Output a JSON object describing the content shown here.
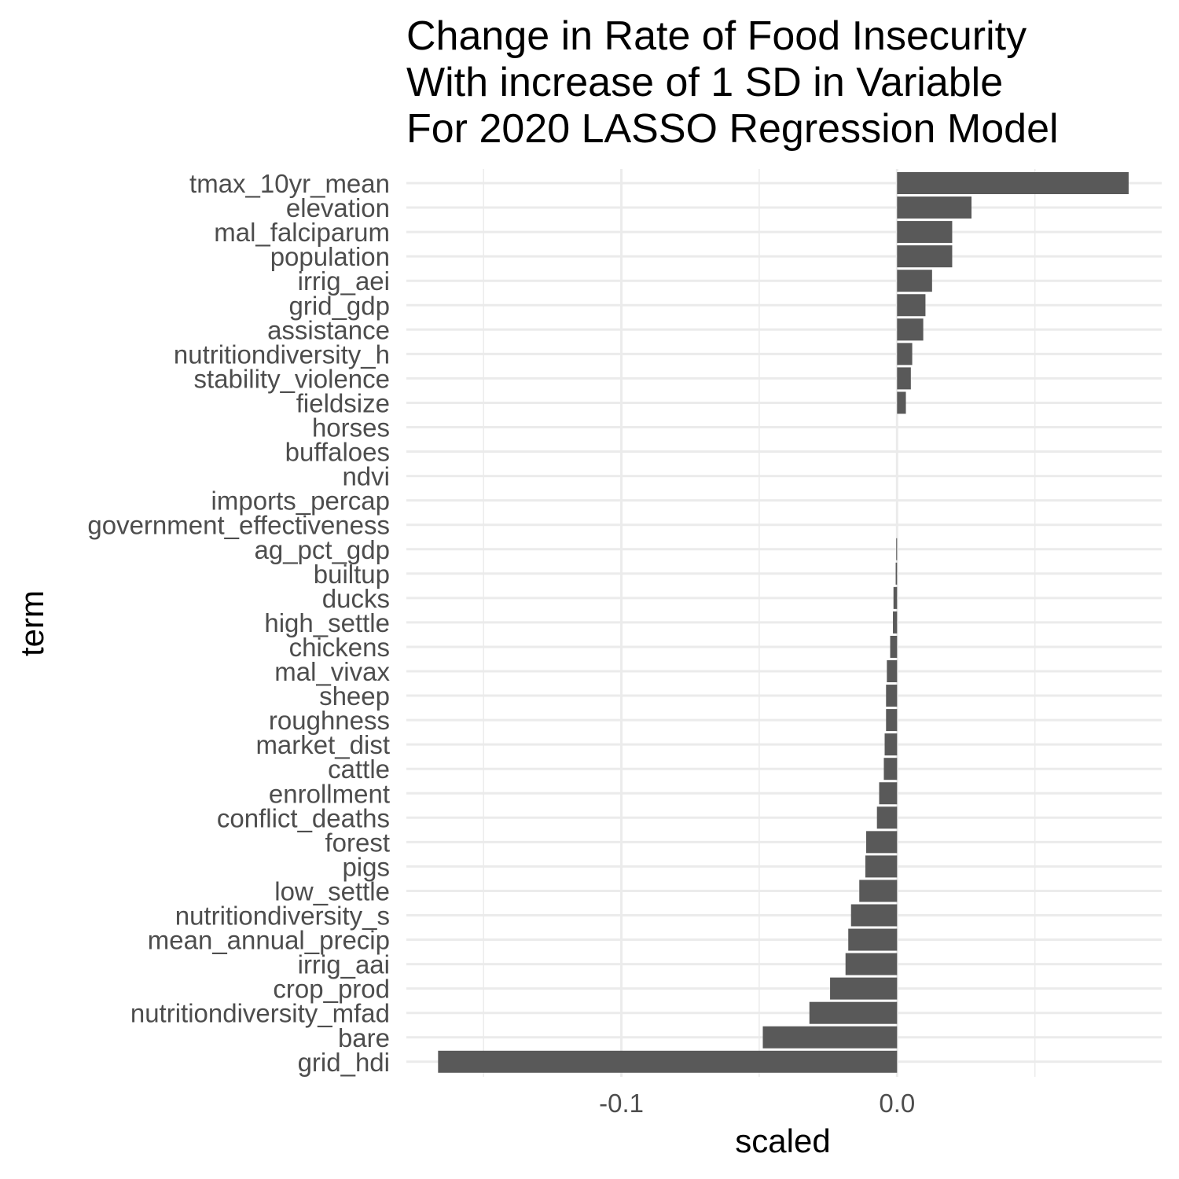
{
  "chart_data": {
    "type": "bar",
    "orientation": "horizontal",
    "title": [
      "Change in Rate of Food Insecurity",
      "With increase of 1 SD in Variable",
      "For 2020 LASSO Regression Model"
    ],
    "xlabel": "scaled",
    "ylabel": "term",
    "xlim": [
      -0.178,
      0.096
    ],
    "xticks": [
      -0.1,
      0.0
    ],
    "xtick_labels": [
      "-0.1",
      "0.0"
    ],
    "xminor": [
      -0.15,
      -0.05,
      0.05
    ],
    "grid": true,
    "legend": "none",
    "bar_color": "#595959",
    "categories": [
      "tmax_10yr_mean",
      "elevation",
      "mal_falciparum",
      "population",
      "irrig_aei",
      "grid_gdp",
      "assistance",
      "nutritiondiversity_h",
      "stability_violence",
      "fieldsize",
      "horses",
      "buffaloes",
      "ndvi",
      "imports_percap",
      "government_effectiveness",
      "ag_pct_gdp",
      "builtup",
      "ducks",
      "high_settle",
      "chickens",
      "mal_vivax",
      "sheep",
      "roughness",
      "market_dist",
      "cattle",
      "enrollment",
      "conflict_deaths",
      "forest",
      "pigs",
      "low_settle",
      "nutritiondiversity_s",
      "mean_annual_precip",
      "irrig_aai",
      "crop_prod",
      "nutritiondiversity_mfad",
      "bare",
      "grid_hdi"
    ],
    "values": [
      0.084,
      0.027,
      0.02,
      0.02,
      0.0127,
      0.0103,
      0.0095,
      0.0055,
      0.005,
      0.0032,
      0.0,
      0.0,
      0.0,
      0.0,
      0.0,
      -0.0003,
      -0.0005,
      -0.0013,
      -0.0015,
      -0.0025,
      -0.0037,
      -0.004,
      -0.004,
      -0.0045,
      -0.0048,
      -0.0065,
      -0.0073,
      -0.0112,
      -0.0115,
      -0.0137,
      -0.0167,
      -0.0177,
      -0.0187,
      -0.0243,
      -0.0318,
      -0.0487,
      -0.1665
    ]
  }
}
